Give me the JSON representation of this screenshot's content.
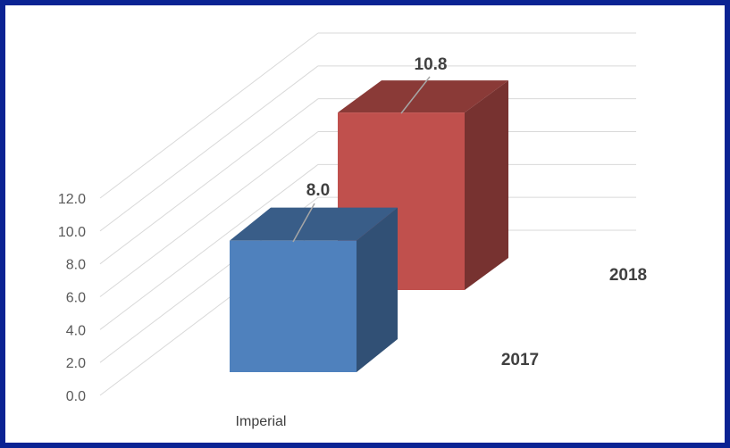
{
  "chart_data": {
    "type": "bar",
    "style": "3d-column",
    "categories": [
      "Imperial"
    ],
    "series": [
      {
        "name": "2017",
        "values": [
          8.0
        ],
        "color": "#4f81bd",
        "label": "8.0"
      },
      {
        "name": "2018",
        "values": [
          10.8
        ],
        "color": "#c0504d",
        "label": "10.8"
      }
    ],
    "y_ticks": [
      "0.0",
      "2.0",
      "4.0",
      "6.0",
      "8.0",
      "10.0",
      "12.0"
    ],
    "ylim": [
      0,
      12
    ],
    "grid": true,
    "legend": "none"
  }
}
